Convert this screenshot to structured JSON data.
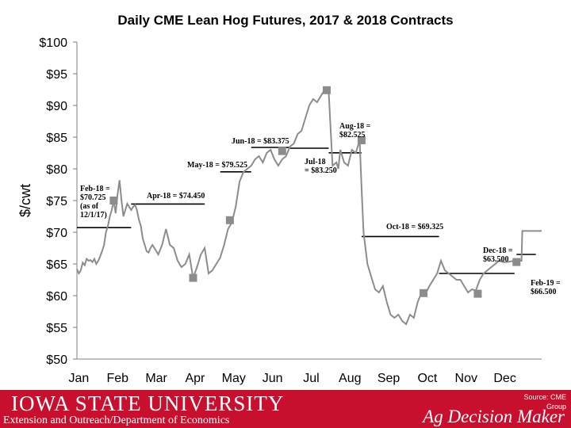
{
  "chart_data": {
    "type": "line",
    "title": "Daily CME Lean Hog Futures, 2017 & 2018 Contracts",
    "ylabel": "$/cwt",
    "xlabel": "",
    "ylim": [
      50,
      100
    ],
    "yticks": [
      50,
      55,
      60,
      65,
      70,
      75,
      80,
      85,
      90,
      95,
      100
    ],
    "ytick_labels": [
      "$50",
      "$55",
      "$60",
      "$65",
      "$70",
      "$75",
      "$80",
      "$85",
      "$90",
      "$95",
      "$100"
    ],
    "months": [
      "Jan",
      "Feb",
      "Mar",
      "Apr",
      "May",
      "Jun",
      "Jul",
      "Aug",
      "Sep",
      "Oct",
      "Nov",
      "Dec"
    ],
    "xlim": [
      0,
      12
    ],
    "grid": false,
    "line_color": "#8c8c8c",
    "series": [
      {
        "values_x": [
          0,
          0.05,
          0.1,
          0.15,
          0.2,
          0.25,
          0.3,
          0.35,
          0.4,
          0.45,
          0.5,
          0.55,
          0.6,
          0.65,
          0.7,
          0.75,
          0.8,
          0.85,
          0.9,
          0.95,
          1.0,
          1.05,
          1.1,
          1.15,
          1.2,
          1.25,
          1.3,
          1.35,
          1.4,
          1.45,
          1.5,
          1.55,
          1.6,
          1.65,
          1.7,
          1.75,
          1.8,
          1.85,
          1.9,
          1.95,
          2.0,
          2.1,
          2.2,
          2.3,
          2.4,
          2.5,
          2.6,
          2.7,
          2.8,
          2.9,
          3.0,
          3.1,
          3.2,
          3.3,
          3.4,
          3.5,
          3.6,
          3.7,
          3.8,
          3.9,
          4.0,
          4.1,
          4.2,
          4.3,
          4.4,
          4.5,
          4.6,
          4.7,
          4.8,
          4.9,
          5.0,
          5.1,
          5.2,
          5.3,
          5.4,
          5.5,
          5.6,
          5.7,
          5.8,
          5.9,
          6.0,
          6.1,
          6.2,
          6.3,
          6.4,
          6.5,
          6.6,
          6.7,
          6.75,
          6.8,
          6.85,
          6.9,
          7.0,
          7.1,
          7.2,
          7.3,
          7.35,
          7.4,
          7.5,
          7.6,
          7.7,
          7.8,
          7.9,
          8.0,
          8.1,
          8.2,
          8.3,
          8.4,
          8.5,
          8.6,
          8.7,
          8.8,
          8.9,
          9.0,
          9.1,
          9.2,
          9.3,
          9.4,
          9.5,
          9.6,
          9.7,
          9.8,
          9.9,
          10.0,
          10.1,
          10.2,
          10.3,
          10.4,
          10.5,
          10.6,
          10.7,
          10.8,
          10.9,
          11.0,
          11.1,
          11.2,
          11.3,
          11.4,
          11.5
        ],
        "values": [
          64.2,
          63.5,
          64.0,
          65.2,
          64.8,
          65.8,
          65.5,
          65.6,
          65.3,
          65.8,
          65.0,
          65.5,
          66.2,
          67.0,
          68.0,
          70.0,
          71.0,
          72.5,
          73.5,
          75.0,
          73.0,
          76.0,
          78.2,
          75.0,
          72.5,
          73.5,
          74.5,
          74.0,
          73.5,
          74.0,
          74.3,
          73.5,
          72.0,
          71.0,
          69.0,
          68.0,
          67.0,
          66.8,
          67.5,
          68.0,
          67.5,
          66.5,
          68.0,
          70.5,
          68.0,
          67.5,
          65.5,
          64.5,
          65.0,
          66.5,
          62.8,
          64.5,
          66.5,
          67.5,
          63.5,
          64.0,
          65.0,
          66.0,
          68.0,
          70.5,
          71.5,
          74.0,
          78.0,
          79.5,
          80.0,
          80.5,
          81.5,
          82.0,
          81.0,
          82.5,
          83.0,
          81.5,
          80.5,
          81.5,
          82.0,
          83.5,
          84.0,
          85.5,
          86.0,
          88.0,
          90.0,
          91.0,
          90.5,
          91.5,
          92.5,
          92.3,
          80.5,
          81.0,
          80.0,
          83.0,
          82.0,
          81.0,
          80.5,
          83.0,
          82.5,
          84.5,
          77.0,
          70.0,
          65.0,
          63.0,
          61.0,
          60.5,
          61.5,
          59.0,
          57.0,
          56.5,
          57.0,
          56.0,
          55.5,
          57.0,
          56.5,
          59.0,
          60.5,
          60.3,
          61.5,
          62.5,
          63.5,
          65.5,
          64.0,
          63.5,
          63.0,
          62.5,
          62.5,
          61.5,
          60.5,
          61.0,
          60.8,
          62.5,
          63.5,
          64.0,
          64.5,
          65.0,
          65.5,
          65.3,
          65.3,
          65.4,
          65.5,
          65.5,
          65.5
        ]
      },
      {
        "values_x": [
          11.48,
          11.5,
          11.75,
          12.0
        ],
        "values": [
          65.6,
          70.2,
          70.2,
          70.2
        ]
      }
    ],
    "markers": [
      {
        "x": 0.95,
        "y": 75.0
      },
      {
        "x": 3.0,
        "y": 62.8
      },
      {
        "x": 3.95,
        "y": 71.9
      },
      {
        "x": 5.3,
        "y": 82.8
      },
      {
        "x": 6.45,
        "y": 92.4
      },
      {
        "x": 7.35,
        "y": 84.5
      },
      {
        "x": 8.95,
        "y": 60.4
      },
      {
        "x": 10.35,
        "y": 60.3
      },
      {
        "x": 11.35,
        "y": 65.3
      }
    ],
    "marker_color": "#8c8c8c",
    "price_lines": [
      {
        "x1": 0.0,
        "x2": 1.4,
        "y": 70.725
      },
      {
        "x1": 1.4,
        "x2": 3.3,
        "y": 74.45
      },
      {
        "x1": 3.7,
        "x2": 4.5,
        "y": 79.525
      },
      {
        "x1": 4.5,
        "x2": 5.5,
        "y": 83.375
      },
      {
        "x1": 5.5,
        "x2": 6.5,
        "y": 83.25
      },
      {
        "x1": 6.5,
        "x2": 7.35,
        "y": 82.525
      },
      {
        "x1": 7.35,
        "x2": 9.35,
        "y": 69.325
      },
      {
        "x1": 9.35,
        "x2": 11.3,
        "y": 63.5
      },
      {
        "x1": 11.35,
        "x2": 11.85,
        "y": 66.5
      }
    ],
    "annotations": {
      "feb18": [
        "Feb-18 =",
        "$70.725",
        "(as of",
        "12/1/17)"
      ],
      "apr18": [
        "Apr-18 = $74.450"
      ],
      "may18": [
        "May-18 = $79.525"
      ],
      "jun18": [
        "Jun-18 = $83.375"
      ],
      "jul18": [
        "Jul-18",
        "= $83.250"
      ],
      "aug18": [
        "Aug-18 =",
        "$82.525"
      ],
      "oct18": [
        "Oct-18 = $69.325"
      ],
      "dec18": [
        "Dec-18 =",
        "$63.500"
      ],
      "feb19": [
        "Feb-19 =",
        "$66.500"
      ]
    }
  },
  "footer": {
    "university": "IOWA STATE UNIVERSITY",
    "department": "Extension and Outreach/Department of Economics",
    "source": "Source: CME Group",
    "brand": "Ag Decision Maker"
  }
}
